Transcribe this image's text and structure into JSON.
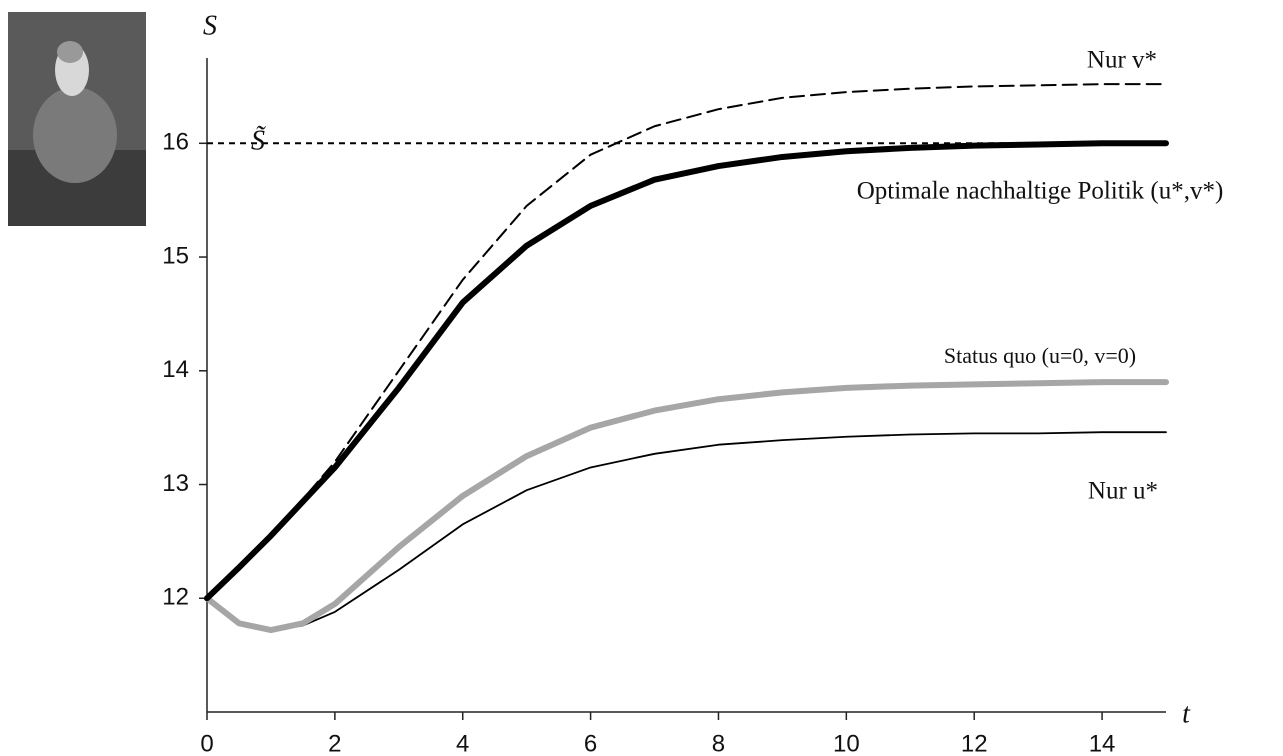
{
  "chart_data": {
    "type": "line",
    "xlabel": "t",
    "ylabel": "S",
    "x": [
      0,
      0.5,
      1,
      1.5,
      2,
      3,
      4,
      5,
      6,
      7,
      8,
      9,
      10,
      11,
      12,
      13,
      14,
      15
    ],
    "series": [
      {
        "name": "Nur v*",
        "color": "#000000",
        "dash": true,
        "values": [
          12,
          12.27,
          12.55,
          12.87,
          13.2,
          14.0,
          14.8,
          15.45,
          15.9,
          16.15,
          16.3,
          16.4,
          16.45,
          16.48,
          16.5,
          16.51,
          16.52,
          16.52
        ]
      },
      {
        "name": "Optimale nachhaltige Politik (u*,v*)",
        "color": "#000000",
        "dash": false,
        "values": [
          12,
          12.27,
          12.55,
          12.85,
          13.15,
          13.85,
          14.6,
          15.1,
          15.45,
          15.68,
          15.8,
          15.88,
          15.93,
          15.96,
          15.98,
          15.99,
          16.0,
          16.0
        ]
      },
      {
        "name": "Status quo  (u=0, v=0)",
        "color": "#a6a6a6",
        "dash": false,
        "values": [
          12,
          11.78,
          11.72,
          11.78,
          11.95,
          12.45,
          12.9,
          13.25,
          13.5,
          13.65,
          13.75,
          13.81,
          13.85,
          13.87,
          13.88,
          13.89,
          13.9,
          13.9
        ]
      },
      {
        "name": "Nur u*",
        "color": "#000000",
        "dash": false,
        "values": [
          12,
          11.78,
          11.72,
          11.76,
          11.88,
          12.25,
          12.65,
          12.95,
          13.15,
          13.27,
          13.35,
          13.39,
          13.42,
          13.44,
          13.45,
          13.45,
          13.46,
          13.46
        ]
      }
    ],
    "reference_line": {
      "value": 16,
      "label": "S̃"
    },
    "xlim": [
      0,
      15
    ],
    "xticks": [
      0,
      2,
      4,
      6,
      8,
      10,
      12,
      14
    ],
    "ylim": [
      11,
      16.75
    ],
    "yticks": [
      12,
      13,
      14,
      15,
      16
    ]
  }
}
